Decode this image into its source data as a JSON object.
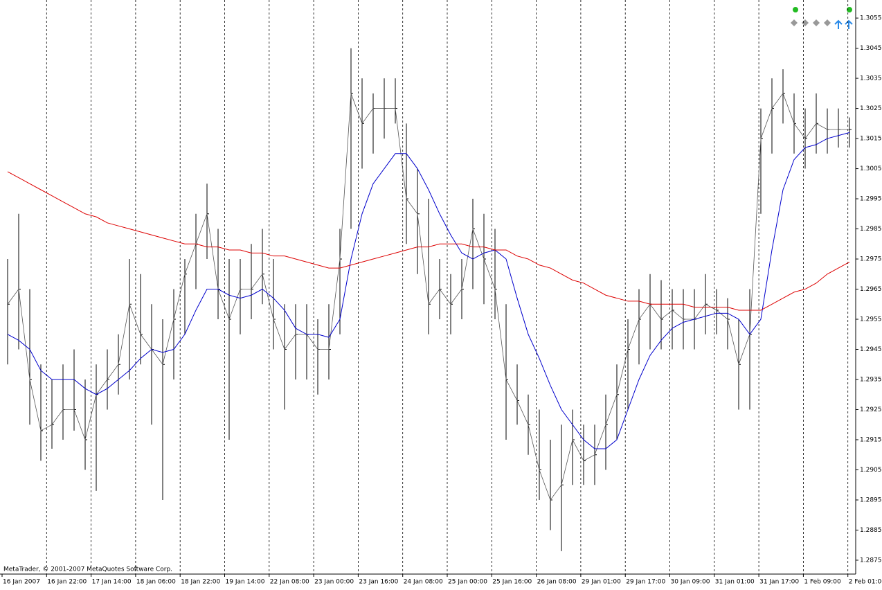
{
  "chart_data": {
    "type": "ohlc",
    "watermark": "MetaTrader, © 2001-2007 MetaQuotes Software Corp.",
    "x_labels": [
      "16 Jan 2007",
      "16 Jan 22:00",
      "17 Jan 14:00",
      "18 Jan 06:00",
      "18 Jan 22:00",
      "19 Jan 14:00",
      "22 Jan 08:00",
      "23 Jan 00:00",
      "23 Jan 16:00",
      "24 Jan 08:00",
      "25 Jan 00:00",
      "25 Jan 16:00",
      "26 Jan 08:00",
      "29 Jan 01:00",
      "29 Jan 17:00",
      "30 Jan 09:00",
      "31 Jan 01:00",
      "31 Jan 17:00",
      "1 Feb 09:00",
      "2 Feb 01:00"
    ],
    "high": [
      1.2975,
      1.299,
      1.2965,
      1.294,
      1.2935,
      1.294,
      1.2945,
      1.2935,
      1.294,
      1.2945,
      1.295,
      1.2975,
      1.297,
      1.296,
      1.2955,
      1.2965,
      1.2975,
      1.299,
      1.3,
      1.2985,
      1.2975,
      1.2975,
      1.298,
      1.2985,
      1.2975,
      1.296,
      1.296,
      1.296,
      1.2955,
      1.296,
      1.2985,
      1.3045,
      1.3035,
      1.303,
      1.3035,
      1.3035,
      1.302,
      1.3005,
      1.2995,
      1.2975,
      1.297,
      1.2975,
      1.2995,
      1.299,
      1.2985,
      1.296,
      1.294,
      1.293,
      1.2925,
      1.2915,
      1.292,
      1.2925,
      1.292,
      1.292,
      1.293,
      1.294,
      1.2955,
      1.2965,
      1.297,
      1.2968,
      1.2965,
      1.2965,
      1.2965,
      1.297,
      1.2965,
      1.2962,
      1.2955,
      1.2965,
      1.3025,
      1.3035,
      1.3038,
      1.303,
      1.3025,
      1.303,
      1.3025,
      1.3025,
      1.3022
    ],
    "low": [
      1.294,
      1.2945,
      1.292,
      1.2908,
      1.2912,
      1.2915,
      1.2918,
      1.2905,
      1.2898,
      1.2925,
      1.293,
      1.2935,
      1.294,
      1.292,
      1.2895,
      1.2935,
      1.295,
      1.2965,
      1.2975,
      1.2955,
      1.2915,
      1.295,
      1.2955,
      1.296,
      1.2945,
      1.2925,
      1.2935,
      1.2935,
      1.293,
      1.2935,
      1.295,
      1.2985,
      1.3005,
      1.301,
      1.3015,
      1.302,
      1.298,
      1.297,
      1.295,
      1.2955,
      1.295,
      1.2955,
      1.2965,
      1.296,
      1.2955,
      1.2915,
      1.292,
      1.291,
      1.2895,
      1.2885,
      1.2878,
      1.29,
      1.29,
      1.29,
      1.2905,
      1.2915,
      1.2925,
      1.294,
      1.2945,
      1.2945,
      1.2945,
      1.2945,
      1.2945,
      1.295,
      1.295,
      1.2945,
      1.2925,
      1.2925,
      1.299,
      1.301,
      1.302,
      1.301,
      1.3005,
      1.301,
      1.301,
      1.3012,
      1.3012
    ],
    "close": [
      1.296,
      1.2965,
      1.2935,
      1.2918,
      1.292,
      1.2925,
      1.2925,
      1.2915,
      1.293,
      1.2935,
      1.294,
      1.296,
      1.295,
      1.2945,
      1.294,
      1.2955,
      1.297,
      1.298,
      1.299,
      1.2965,
      1.2955,
      1.2965,
      1.2965,
      1.297,
      1.2955,
      1.2945,
      1.295,
      1.295,
      1.2945,
      1.2945,
      1.2975,
      1.303,
      1.302,
      1.3025,
      1.3025,
      1.3025,
      1.2995,
      1.299,
      1.296,
      1.2965,
      1.296,
      1.2965,
      1.2985,
      1.2975,
      1.2965,
      1.2935,
      1.2928,
      1.292,
      1.2905,
      1.2895,
      1.29,
      1.2915,
      1.2908,
      1.291,
      1.292,
      1.293,
      1.2945,
      1.2955,
      1.296,
      1.2955,
      1.2958,
      1.2955,
      1.2955,
      1.296,
      1.2958,
      1.2955,
      1.294,
      1.295,
      1.3015,
      1.3025,
      1.303,
      1.302,
      1.3015,
      1.302,
      1.3018,
      1.3018,
      1.3018
    ],
    "color": "#000000",
    "close_line_color": "#555555",
    "lines": [
      {
        "color": "#0000cc",
        "values": [
          1.295,
          1.2948,
          1.2945,
          1.2938,
          1.2935,
          1.2935,
          1.2935,
          1.2932,
          1.293,
          1.2932,
          1.2935,
          1.2938,
          1.2942,
          1.2945,
          1.2944,
          1.2945,
          1.295,
          1.2958,
          1.2965,
          1.2965,
          1.2963,
          1.2962,
          1.2963,
          1.2965,
          1.2962,
          1.2958,
          1.2952,
          1.295,
          1.295,
          1.2949,
          1.2955,
          1.2975,
          1.299,
          1.3,
          1.3005,
          1.301,
          1.301,
          1.3005,
          1.2998,
          1.299,
          1.2983,
          1.2977,
          1.2975,
          1.2977,
          1.2978,
          1.2975,
          1.2962,
          1.295,
          1.2942,
          1.2933,
          1.2925,
          1.292,
          1.2915,
          1.2912,
          1.2912,
          1.2915,
          1.2925,
          1.2935,
          1.2943,
          1.2948,
          1.2952,
          1.2954,
          1.2955,
          1.2956,
          1.2957,
          1.2957,
          1.2955,
          1.295,
          1.2955,
          1.2978,
          1.2998,
          1.3008,
          1.3012,
          1.3013,
          1.3015,
          1.3016,
          1.3017
        ]
      },
      {
        "color": "#dd0000",
        "values": [
          1.3004,
          1.3002,
          1.3,
          1.2998,
          1.2996,
          1.2994,
          1.2992,
          1.299,
          1.2989,
          1.2987,
          1.2986,
          1.2985,
          1.2984,
          1.2983,
          1.2982,
          1.2981,
          1.298,
          1.298,
          1.2979,
          1.2979,
          1.2978,
          1.2978,
          1.2977,
          1.2977,
          1.2976,
          1.2976,
          1.2975,
          1.2974,
          1.2973,
          1.2972,
          1.2972,
          1.2973,
          1.2974,
          1.2975,
          1.2976,
          1.2977,
          1.2978,
          1.2979,
          1.2979,
          1.298,
          1.298,
          1.298,
          1.2979,
          1.2979,
          1.2978,
          1.2978,
          1.2976,
          1.2975,
          1.2973,
          1.2972,
          1.297,
          1.2968,
          1.2967,
          1.2965,
          1.2963,
          1.2962,
          1.2961,
          1.2961,
          1.296,
          1.296,
          1.296,
          1.296,
          1.2959,
          1.2959,
          1.2959,
          1.2959,
          1.2958,
          1.2958,
          1.2958,
          1.296,
          1.2962,
          1.2964,
          1.2965,
          1.2967,
          1.297,
          1.2972,
          1.2974
        ]
      }
    ],
    "ylim": [
      1.2872,
      1.3061
    ],
    "yticks": [
      1.3055,
      1.3045,
      1.3035,
      1.3025,
      1.3015,
      1.3005,
      1.2995,
      1.2985,
      1.2975,
      1.2965,
      1.2955,
      1.2945,
      1.2935,
      1.2925,
      1.2915,
      1.2905,
      1.2895,
      1.2885,
      1.2875
    ]
  }
}
